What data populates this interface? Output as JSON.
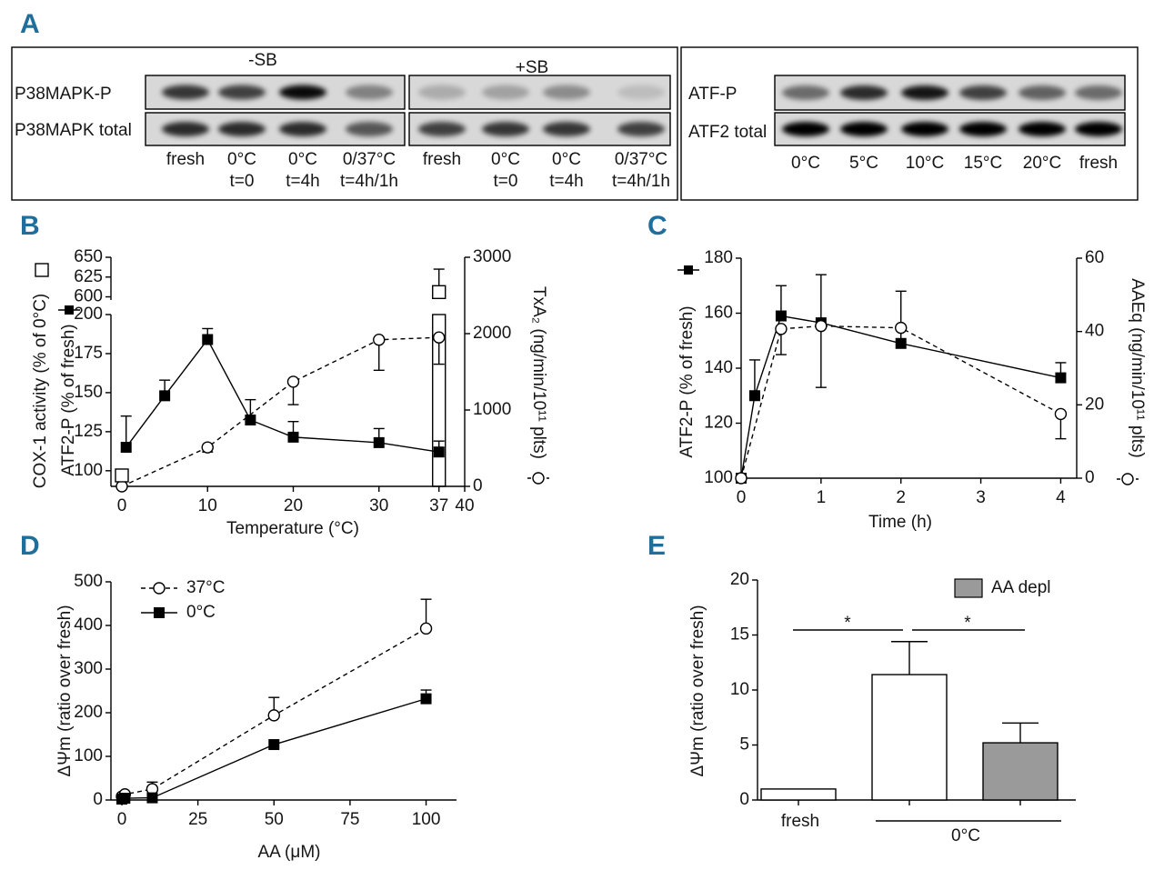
{
  "panel_labels": [
    "A",
    "B",
    "C",
    "D",
    "E"
  ],
  "blots": [
    {
      "group_labels": [
        "-SB",
        "+SB"
      ],
      "rows": [
        "P38MAPK-P",
        "P38MAPK total"
      ],
      "lanes": [
        [
          "fresh"
        ],
        [
          "0°C",
          "t=0"
        ],
        [
          "0°C",
          "t=4h"
        ],
        [
          "0/37°C",
          "t=4h/1h"
        ],
        [
          "fresh"
        ],
        [
          "0°C",
          "t=0"
        ],
        [
          "0°C",
          "t=4h"
        ],
        [
          "0/37°C",
          "t=4h/1h"
        ]
      ]
    },
    {
      "rows": [
        "ATF-P",
        "ATF2 total"
      ],
      "lanes": [
        [
          "0°C"
        ],
        [
          "5°C"
        ],
        [
          "10°C"
        ],
        [
          "15°C"
        ],
        [
          "20°C"
        ],
        [
          "fresh"
        ]
      ]
    }
  ],
  "chart_data": [
    {
      "type": "line",
      "xlabel": "Temperature (°C)",
      "ylabel": "ATF2-P (% of fresh)",
      "ylabel_upper": "COX-1 activity (% of 0°C)",
      "y2label": "TxA₂ (ng/min/10¹¹ plts)",
      "xlim": [
        0,
        40
      ],
      "xticks": [
        0,
        10,
        20,
        30,
        37,
        40
      ],
      "ylim": [
        90,
        200
      ],
      "yticks": [
        100,
        125,
        150,
        175,
        200
      ],
      "upper_ylim": [
        596,
        650
      ],
      "upper_yticks": [
        600,
        625,
        650
      ],
      "y2lim": [
        0,
        3000
      ],
      "y2ticks": [
        0,
        1000,
        2000,
        3000
      ],
      "series": [
        {
          "marker": "filled-square",
          "line": "solid",
          "color": "#000000",
          "x": [
            0.5,
            5,
            10,
            15,
            20,
            30,
            37
          ],
          "values": [
            115,
            148,
            184,
            132.5,
            121.5,
            118,
            112
          ],
          "errors": [
            20,
            10,
            7,
            13,
            10,
            9,
            7
          ]
        },
        {
          "marker": "open-circle",
          "line": "dashed",
          "color": "#000000",
          "axis": "y2",
          "x": [
            0,
            10,
            20,
            30,
            37
          ],
          "values": [
            0,
            510,
            1370,
            1920,
            1950
          ],
          "errors": [
            0,
            60,
            300,
            400,
            350
          ]
        },
        {
          "marker": "open-square",
          "line": "none",
          "color": "#000000",
          "x": [
            0,
            37
          ],
          "values": [
            97,
            606
          ],
          "errors": [
            0,
            29
          ]
        }
      ]
    },
    {
      "type": "line",
      "xlabel": "Time (h)",
      "ylabel": "ATF2-P (% of fresh)",
      "y2label": "AAEq (ng/min/10¹¹ plts)",
      "xlim": [
        0,
        4.2
      ],
      "xticks": [
        0,
        1,
        2,
        3,
        4
      ],
      "ylim": [
        100,
        180
      ],
      "yticks": [
        100,
        120,
        140,
        160,
        180
      ],
      "y2lim": [
        0,
        60
      ],
      "y2ticks": [
        0,
        20,
        40,
        60
      ],
      "series": [
        {
          "marker": "filled-square",
          "line": "solid",
          "color": "#000000",
          "x": [
            0,
            0.17,
            0.5,
            1,
            2,
            4
          ],
          "values": [
            100,
            130,
            159,
            156.5,
            149,
            136.5
          ],
          "errors": [
            0,
            13,
            11,
            17.5,
            19,
            5.5
          ]
        },
        {
          "marker": "open-circle",
          "line": "dashed",
          "color": "#000000",
          "axis": "y2",
          "x": [
            0,
            0.5,
            1,
            2,
            4
          ],
          "values": [
            0,
            40.7,
            41.5,
            41,
            17.5
          ],
          "errors": [
            0,
            7,
            16.75,
            0,
            6.75
          ]
        }
      ]
    },
    {
      "type": "line",
      "xlabel": "AA (μM)",
      "ylabel": "ΔΨm (ratio over fresh)",
      "xlim": [
        0,
        110
      ],
      "xticks": [
        0,
        25,
        50,
        75,
        100
      ],
      "ylim": [
        0,
        500
      ],
      "yticks": [
        0,
        100,
        200,
        300,
        400,
        500
      ],
      "series": [
        {
          "name": "37°C",
          "marker": "open-circle",
          "line": "dashed",
          "color": "#000000",
          "x": [
            0,
            1,
            10,
            50,
            100
          ],
          "values": [
            8,
            13,
            25,
            194,
            393
          ],
          "errors": [
            0,
            0,
            16,
            41,
            67
          ]
        },
        {
          "name": "0°C",
          "marker": "filled-square",
          "line": "solid",
          "color": "#000000",
          "x": [
            0,
            1,
            10,
            50,
            100
          ],
          "values": [
            2,
            4,
            5,
            127,
            232
          ],
          "errors": [
            0,
            0,
            0,
            0,
            20
          ]
        }
      ]
    },
    {
      "type": "bar",
      "ylabel": "ΔΨm (ratio over fresh)",
      "categories": [
        "fresh",
        null,
        null
      ],
      "group_label": "0°C",
      "values": [
        1,
        11.4,
        5.2
      ],
      "errors": [
        0,
        3,
        1.8
      ],
      "colors": [
        "#ffffff",
        "#ffffff",
        "#9a9a9a"
      ],
      "ylim": [
        0,
        20
      ],
      "yticks": [
        0,
        5,
        10,
        15,
        20
      ],
      "legend": {
        "label": "AA depl",
        "color": "#9a9a9a"
      },
      "annotations": [
        "*",
        "*"
      ]
    }
  ]
}
